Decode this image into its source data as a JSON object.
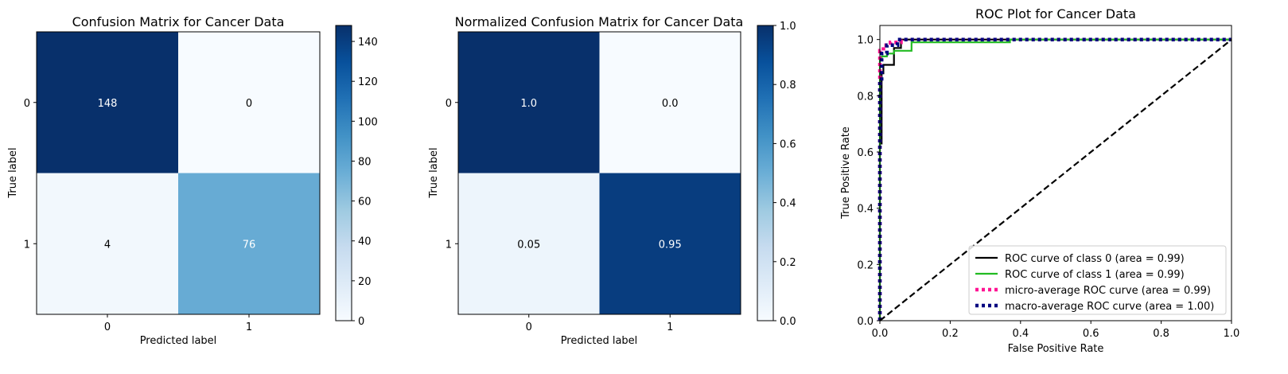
{
  "chart_data": [
    {
      "type": "heatmap",
      "title": "Confusion Matrix for Cancer Data",
      "xlabel": "Predicted label",
      "ylabel": "True label",
      "x_categories": [
        "0",
        "1"
      ],
      "y_categories": [
        "0",
        "1"
      ],
      "values": [
        [
          148,
          0
        ],
        [
          4,
          76
        ]
      ],
      "cell_labels": [
        [
          "148",
          "0"
        ],
        [
          "4",
          "76"
        ]
      ],
      "colormap": "Blues",
      "colorbar": {
        "min": 0,
        "max": 148,
        "ticks": [
          0,
          20,
          40,
          60,
          80,
          100,
          120,
          140
        ]
      }
    },
    {
      "type": "heatmap",
      "title": "Normalized Confusion Matrix for Cancer Data",
      "xlabel": "Predicted label",
      "ylabel": "True label",
      "x_categories": [
        "0",
        "1"
      ],
      "y_categories": [
        "0",
        "1"
      ],
      "values": [
        [
          1.0,
          0.0
        ],
        [
          0.05,
          0.95
        ]
      ],
      "cell_labels": [
        [
          "1.0",
          "0.0"
        ],
        [
          "0.05",
          "0.95"
        ]
      ],
      "colormap": "Blues",
      "colorbar": {
        "min": 0,
        "max": 1,
        "ticks": [
          0.0,
          0.2,
          0.4,
          0.6,
          0.8,
          1.0
        ],
        "tick_labels": [
          "0.0",
          "0.2",
          "0.4",
          "0.6",
          "0.8",
          "1.0"
        ]
      }
    },
    {
      "type": "line",
      "title": "ROC Plot for Cancer Data",
      "xlabel": "False Positive Rate",
      "ylabel": "True Positive Rate",
      "xlim": [
        0,
        1
      ],
      "ylim": [
        0,
        1.05
      ],
      "xticks": [
        "0.0",
        "0.2",
        "0.4",
        "0.6",
        "0.8",
        "1.0"
      ],
      "yticks": [
        "0.0",
        "0.2",
        "0.4",
        "0.6",
        "0.8",
        "1.0"
      ],
      "grid": false,
      "legend": "lower-right",
      "series": [
        {
          "name": "ROC curve of class 0 (area = 0.99)",
          "color": "#000000",
          "style": "solid",
          "x": [
            0,
            0,
            0.005,
            0.005,
            0.01,
            0.01,
            0.02,
            0.02,
            0.04,
            0.04,
            0.06,
            0.06,
            1
          ],
          "y": [
            0,
            0.63,
            0.63,
            0.88,
            0.88,
            0.91,
            0.91,
            0.91,
            0.91,
            0.97,
            0.97,
            1.0,
            1.0
          ]
        },
        {
          "name": "ROC curve of class 1 (area = 0.99)",
          "color": "#22bb22",
          "style": "solid",
          "x": [
            0,
            0,
            0.005,
            0.005,
            0.02,
            0.02,
            0.04,
            0.04,
            0.09,
            0.09,
            0.37,
            0.37,
            1
          ],
          "y": [
            0,
            0.93,
            0.93,
            0.94,
            0.94,
            0.95,
            0.95,
            0.96,
            0.96,
            0.99,
            0.99,
            1.0,
            1.0
          ]
        },
        {
          "name": "micro-average ROC curve (area = 0.99)",
          "color": "#ff1493",
          "style": "dotted",
          "x": [
            0,
            0,
            0.01,
            0.01,
            0.03,
            0.03,
            0.06,
            0.06,
            1
          ],
          "y": [
            0,
            0.96,
            0.96,
            0.98,
            0.98,
            0.99,
            0.99,
            1.0,
            1.0
          ]
        },
        {
          "name": "macro-average ROC curve (area = 1.00)",
          "color": "#000080",
          "style": "dotted",
          "x": [
            0,
            0,
            0.005,
            0.005,
            0.02,
            0.02,
            0.05,
            0.05,
            1
          ],
          "y": [
            0,
            0.85,
            0.85,
            0.95,
            0.95,
            0.98,
            0.98,
            1.0,
            1.0
          ]
        },
        {
          "name": "",
          "color": "#000000",
          "style": "dashed",
          "x": [
            0,
            1
          ],
          "y": [
            0,
            1
          ]
        }
      ]
    }
  ]
}
